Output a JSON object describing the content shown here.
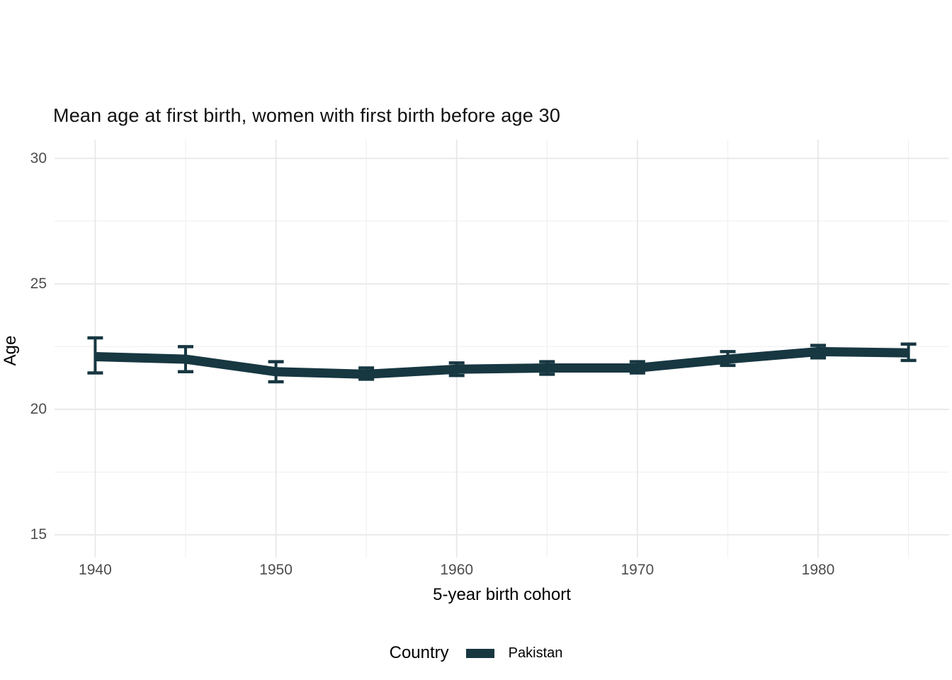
{
  "chart_data": {
    "type": "line",
    "title": "Mean age at first birth, women with first birth before age 30",
    "xlabel": "5-year birth cohort",
    "ylabel": "Age",
    "legend": {
      "title": "Country",
      "position": "bottom",
      "entries": [
        {
          "label": "Pakistan",
          "color": "#173741"
        }
      ]
    },
    "x": [
      1940,
      1945,
      1950,
      1955,
      1960,
      1965,
      1970,
      1975,
      1980,
      1985
    ],
    "series": [
      {
        "name": "Pakistan",
        "color": "#173741",
        "values": [
          22.1,
          22.0,
          21.5,
          21.4,
          21.6,
          21.65,
          21.65,
          22.0,
          22.3,
          22.25
        ],
        "ci_low": [
          21.45,
          21.5,
          21.1,
          21.2,
          21.35,
          21.4,
          21.45,
          21.75,
          22.05,
          21.95
        ],
        "ci_high": [
          22.85,
          22.5,
          21.9,
          21.65,
          21.85,
          21.9,
          21.9,
          22.3,
          22.55,
          22.6
        ]
      }
    ],
    "xlim": [
      1937.75,
      1987.25
    ],
    "ylim": [
      14.1,
      30.75
    ],
    "x_major_ticks": [
      1940,
      1950,
      1960,
      1970,
      1980
    ],
    "x_minor_ticks": [
      1945,
      1955,
      1965,
      1975,
      1985
    ],
    "y_major_ticks": [
      15,
      20,
      25,
      30
    ],
    "y_minor_ticks": [
      17.5,
      22.5,
      27.5
    ],
    "grid": true,
    "style": {
      "grid_major_color": "#e8e8e8",
      "grid_minor_color": "#f1f1f1",
      "tick_label_color": "#4d4d4d",
      "background": "#ffffff"
    }
  }
}
